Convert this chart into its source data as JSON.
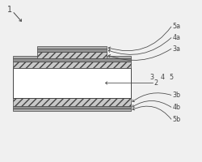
{
  "bg_color": "#f0f0f0",
  "line_color": "#444444",
  "white_color": "#ffffff",
  "fig_width": 2.5,
  "fig_height": 2.0,
  "label_1": "1",
  "label_2": "2",
  "label_3": "3",
  "label_4": "4",
  "label_5": "5",
  "label_3a": "3a",
  "label_4a": "4a",
  "label_5a": "5a",
  "label_3b": "3b",
  "label_4b": "4b",
  "label_5b": "5b"
}
